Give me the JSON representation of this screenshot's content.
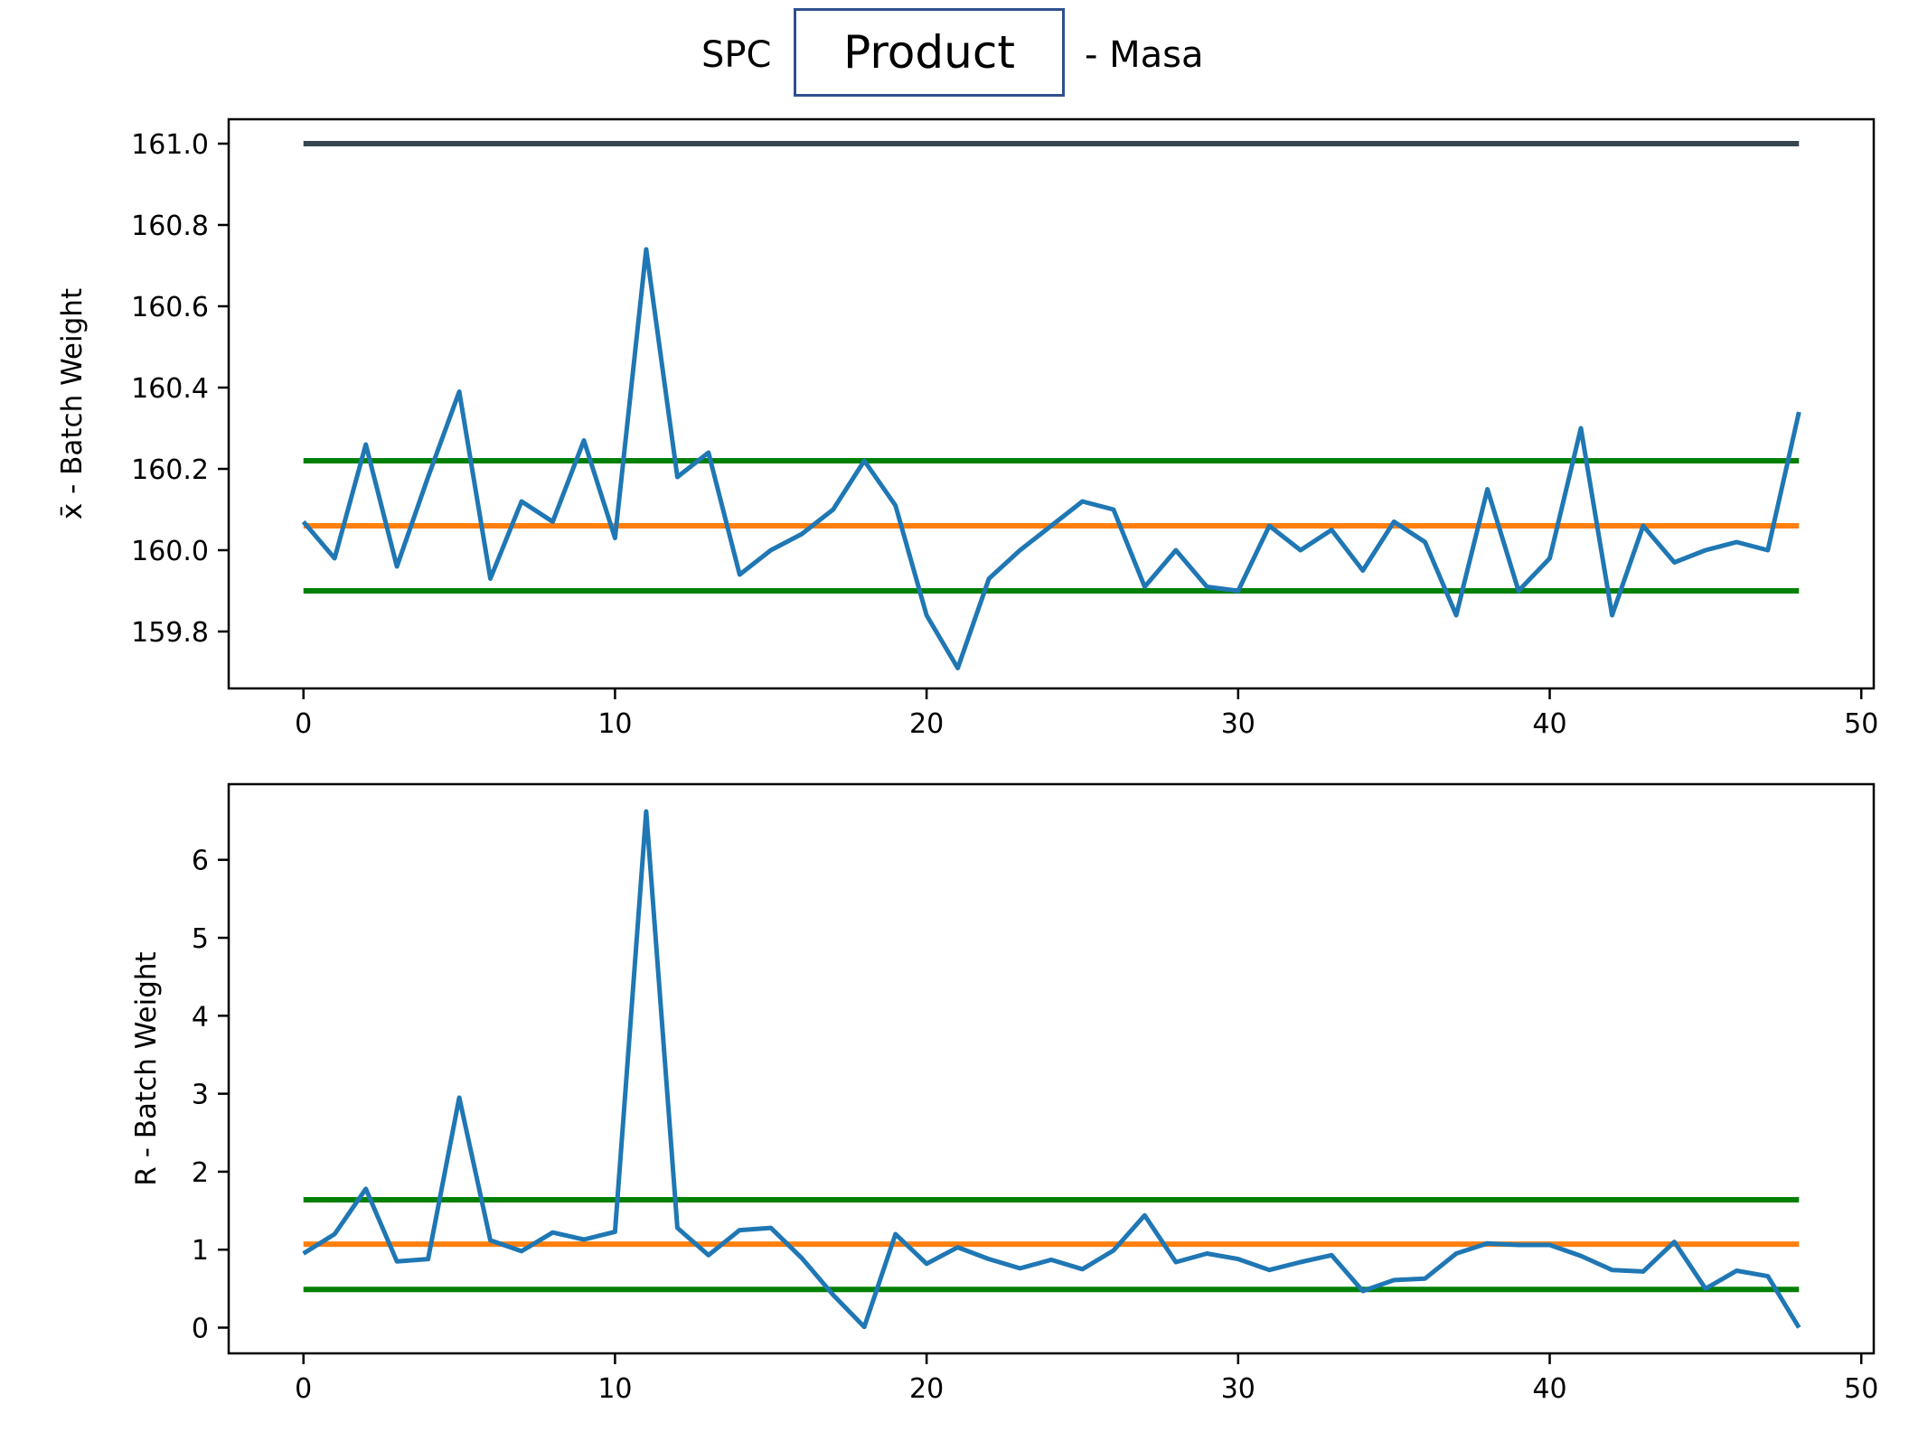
{
  "header": {
    "prefix": "SPC",
    "product_field": "Product",
    "suffix": "- Masa"
  },
  "colors": {
    "series": "#1f77b4",
    "center_line": "#ff7f0e",
    "control_limits": "#008000",
    "spec_limit": "#36454f"
  },
  "chart_data": [
    {
      "type": "line",
      "title": "",
      "xlabel": "",
      "ylabel": "x̄ - Batch Weight",
      "xlim": [
        -2.4,
        50.4
      ],
      "ylim": [
        159.66,
        161.06
      ],
      "xticks": [
        0,
        10,
        20,
        30,
        40,
        50
      ],
      "yticks": [
        159.8,
        160.0,
        160.2,
        160.4,
        160.6,
        160.8,
        161.0
      ],
      "ytick_labels": [
        "159.8",
        "160.0",
        "160.2",
        "160.4",
        "160.6",
        "160.8",
        "161.0"
      ],
      "grid": false,
      "series": [
        {
          "values": [
            160.07,
            159.98,
            160.26,
            159.96,
            160.18,
            160.39,
            159.93,
            160.12,
            160.07,
            160.27,
            160.03,
            160.74,
            160.18,
            160.24,
            159.94,
            160.0,
            160.04,
            160.1,
            160.22,
            160.11,
            159.84,
            159.71,
            159.93,
            160.0,
            160.06,
            160.12,
            160.1,
            159.91,
            160.0,
            159.91,
            159.9,
            160.06,
            160.0,
            160.05,
            159.95,
            160.07,
            160.02,
            159.84,
            160.15,
            159.9,
            159.98,
            160.3,
            159.84,
            160.06,
            159.97,
            160.0,
            160.02,
            160.0,
            160.34
          ]
        }
      ],
      "reference_lines": [
        {
          "role": "spec_limit",
          "y": 161.0
        },
        {
          "role": "ucl",
          "y": 160.22
        },
        {
          "role": "center",
          "y": 160.06
        },
        {
          "role": "lcl",
          "y": 159.9
        }
      ]
    },
    {
      "type": "line",
      "title": "",
      "xlabel": "",
      "ylabel": "R - Batch Weight",
      "xlim": [
        -2.4,
        50.4
      ],
      "ylim": [
        -0.33,
        6.97
      ],
      "xticks": [
        0,
        10,
        20,
        30,
        40,
        50
      ],
      "yticks": [
        0,
        1,
        2,
        3,
        4,
        5,
        6
      ],
      "ytick_labels": [
        "0",
        "1",
        "2",
        "3",
        "4",
        "5",
        "6"
      ],
      "grid": false,
      "series": [
        {
          "values": [
            0.95,
            1.2,
            1.78,
            0.85,
            0.88,
            2.95,
            1.12,
            0.98,
            1.22,
            1.13,
            1.23,
            6.62,
            1.28,
            0.93,
            1.25,
            1.28,
            0.89,
            0.42,
            0.01,
            1.2,
            0.82,
            1.03,
            0.88,
            0.76,
            0.87,
            0.75,
            0.99,
            1.44,
            0.84,
            0.95,
            0.88,
            0.74,
            0.84,
            0.93,
            0.47,
            0.61,
            0.63,
            0.95,
            1.08,
            1.06,
            1.06,
            0.92,
            0.74,
            0.72,
            1.1,
            0.5,
            0.73,
            0.66,
            0.0
          ]
        }
      ],
      "reference_lines": [
        {
          "role": "ucl",
          "y": 1.64
        },
        {
          "role": "center",
          "y": 1.07
        },
        {
          "role": "lcl",
          "y": 0.49
        }
      ]
    }
  ]
}
